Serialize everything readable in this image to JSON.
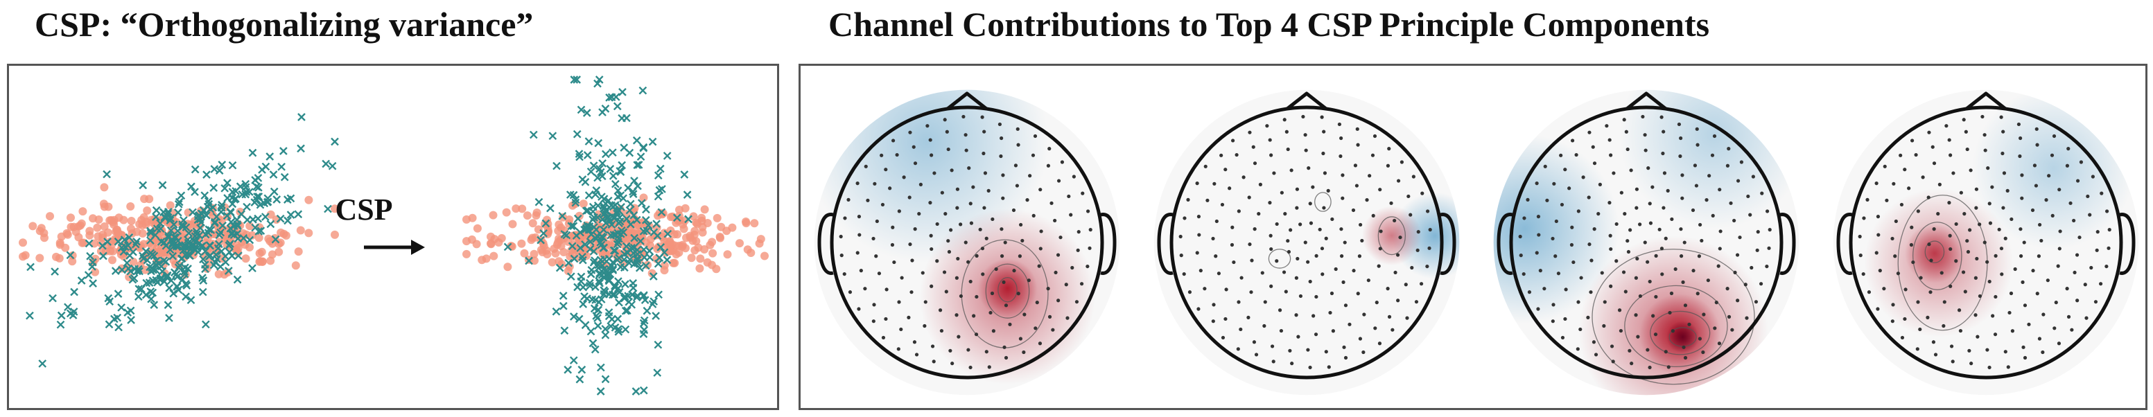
{
  "left": {
    "title": "CSP: “Orthogonalizing variance”",
    "arrow_label": "CSP",
    "marker_colors": {
      "circle": "#F4937C",
      "cross": "#2E8B8B"
    }
  },
  "right": {
    "title": "Channel Contributions to Top 4 CSP Principle Components",
    "colormap": {
      "positive": "#B2182B",
      "neutral": "#F7F7F7",
      "negative": "#4393C3"
    },
    "components": [
      {
        "peak": "right-central",
        "strength": 0.75
      },
      {
        "peak": "weak",
        "strength": 0.25
      },
      {
        "peak": "posterior",
        "strength": 1.0
      },
      {
        "peak": "left-central",
        "strength": 0.55
      }
    ]
  }
}
